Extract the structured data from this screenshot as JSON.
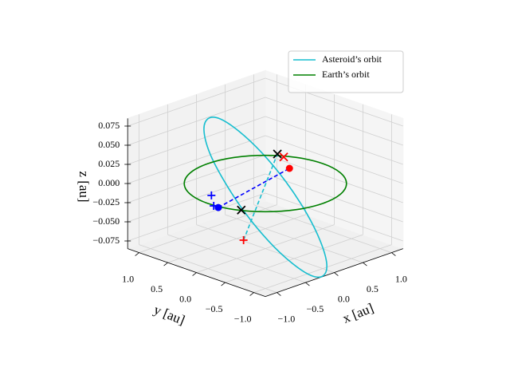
{
  "chart_data": {
    "type": "line3d",
    "xlabel": "x [au]",
    "ylabel": "y [au]",
    "zlabel": "z [au]",
    "xlim": [
      -1.2,
      1.2
    ],
    "ylim": [
      -1.2,
      1.2
    ],
    "zlim": [
      -0.085,
      0.085
    ],
    "xticks": [
      {
        "value": -1,
        "label": "−1.0"
      },
      {
        "value": -0.5,
        "label": "−0.5"
      },
      {
        "value": 0,
        "label": "0.0"
      },
      0.5,
      {
        "value": 1,
        "label": "1.0"
      }
    ],
    "yticks": [
      {
        "value": -1,
        "label": "−1.0"
      },
      {
        "value": -0.5,
        "label": "−0.5"
      },
      {
        "value": 0,
        "label": "0.0"
      },
      0.5,
      {
        "value": 1,
        "label": "1.0"
      }
    ],
    "zticks": [
      {
        "value": -0.075,
        "label": "−0.075"
      },
      {
        "value": -0.05,
        "label": "−0.050"
      },
      {
        "value": -0.025,
        "label": "−0.025"
      },
      {
        "value": 0,
        "label": "0.000"
      },
      0.025,
      {
        "value": 0.05,
        "label": "0.050"
      },
      0.075
    ],
    "grid": true,
    "legend_loc": "upper right",
    "series": [
      {
        "name": "Asteroid’s orbit",
        "color": "#17becf",
        "x": [
          -0.46,
          -0.66,
          -0.82,
          -0.9,
          -0.9,
          -0.81,
          -0.66,
          -0.45,
          -0.22,
          -0.02,
          0.14,
          0.22,
          0.22,
          0.13,
          -0.03,
          -0.23,
          -0.46
        ],
        "y": [
          -1.47,
          -1.46,
          -1.28,
          -0.96,
          -0.54,
          -0.09,
          0.31,
          0.62,
          0.78,
          0.78,
          0.6,
          0.28,
          -0.14,
          -0.59,
          -0.99,
          -1.3,
          -1.47
        ],
        "z": [
          -0.07,
          -0.065,
          -0.049,
          -0.027,
          0,
          0.027,
          0.049,
          0.065,
          0.07,
          0.065,
          0.049,
          0.027,
          0,
          -0.027,
          -0.049,
          -0.065,
          -0.07
        ]
      },
      {
        "name": "Earth’s orbit",
        "color": "#008000",
        "x": [
          1,
          0.924,
          0.707,
          0.383,
          0,
          -0.383,
          -0.707,
          -0.924,
          -1,
          -0.924,
          -0.707,
          -0.383,
          0,
          0.383,
          0.707,
          0.924,
          1
        ],
        "y": [
          0,
          0.383,
          0.707,
          0.924,
          1,
          0.924,
          0.707,
          0.383,
          0,
          -0.383,
          -0.707,
          -0.924,
          -1,
          -0.924,
          -0.707,
          -0.383,
          0
        ],
        "z": [
          0,
          0,
          0,
          0,
          0,
          0,
          0,
          0,
          0,
          0,
          0,
          0,
          0,
          0,
          0,
          0,
          0
        ]
      }
    ],
    "dashed": [
      {
        "color": "#0000ff",
        "x": [
          -0.82,
          0.59
        ],
        "y": [
          0,
          0.17
        ],
        "z": [
          -0.01,
          0
        ]
      },
      {
        "color": "#17becf",
        "x": [
          -0.65,
          0.27
        ],
        "y": [
          -0.27,
          0.06
        ],
        "z": [
          -0.05,
          0.03
        ]
      }
    ],
    "markers": [
      {
        "marker": "o",
        "color": "#ff0000",
        "x": 0.59,
        "y": 0.17,
        "z": 0
      },
      {
        "marker": "o",
        "color": "#0000ff",
        "x": -0.82,
        "y": 0,
        "z": -0.01
      },
      {
        "marker": "+",
        "color": "#0000ff",
        "x": -0.96,
        "y": -0.02,
        "z": 0.01
      },
      {
        "marker": "+",
        "color": "#0000ff",
        "x": -1.01,
        "y": -0.11,
        "z": 0
      },
      {
        "marker": "x",
        "color": "#ff0000",
        "x": 0.44,
        "y": 0.12,
        "z": 0.02
      },
      {
        "marker": "x",
        "color": "#000000",
        "x": 0.27,
        "y": 0.06,
        "z": 0.03
      },
      {
        "marker": "x",
        "color": "#000000",
        "x": -0.49,
        "y": -0.07,
        "z": -0.02
      },
      {
        "marker": "+",
        "color": "#ff0000",
        "x": -0.65,
        "y": -0.27,
        "z": -0.05
      }
    ]
  }
}
